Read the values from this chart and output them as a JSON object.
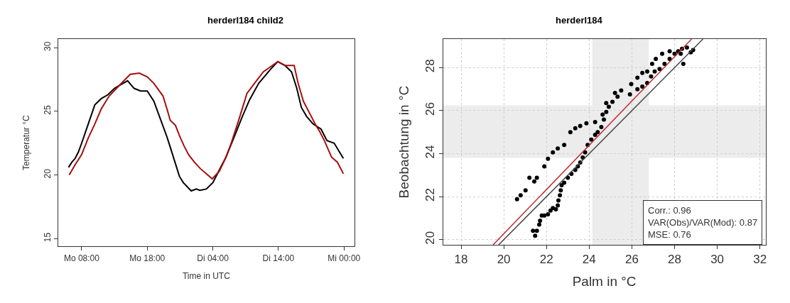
{
  "chart_data": [
    {
      "type": "line",
      "title": "herderl184 child2",
      "xlabel": "Time in UTC",
      "ylabel": "Temperatur °C",
      "xlim": [
        "2000-01-03T04:24",
        "2000-01-05T01:36"
      ],
      "ylim": [
        14.4,
        30.67
      ],
      "xticks": [
        {
          "value": "2000-01-03T08:00",
          "label": "Mo 08:00"
        },
        {
          "value": "2000-01-03T18:00",
          "label": "Mo 18:00"
        },
        {
          "value": "2000-01-04T04:00",
          "label": "Di 04:00"
        },
        {
          "value": "2000-01-04T14:00",
          "label": "Di 14:00"
        },
        {
          "value": "2000-01-05T00:00",
          "label": "Mi 00:00"
        }
      ],
      "yticks": [
        15,
        20,
        25,
        30
      ],
      "grid": false,
      "marker": "none",
      "line_style": "solid",
      "series": [
        {
          "color": "#000000",
          "x": [
            "2000-01-03T06:00",
            "2000-01-03T06:30",
            "2000-01-03T07:00",
            "2000-01-03T07:30",
            "2000-01-03T08:00",
            "2000-01-03T09:00",
            "2000-01-03T10:00",
            "2000-01-03T11:00",
            "2000-01-03T12:00",
            "2000-01-03T13:00",
            "2000-01-03T14:00",
            "2000-01-03T15:00",
            "2000-01-03T16:00",
            "2000-01-03T17:00",
            "2000-01-03T18:00",
            "2000-01-03T19:00",
            "2000-01-03T20:00",
            "2000-01-03T21:00",
            "2000-01-03T21:30",
            "2000-01-03T22:54",
            "2000-01-03T23:30",
            "2000-01-04T00:42",
            "2000-01-04T01:30",
            "2000-01-04T02:00",
            "2000-01-04T03:00",
            "2000-01-04T04:00",
            "2000-01-04T05:18",
            "2000-01-04T06:00",
            "2000-01-04T07:30",
            "2000-01-04T08:30",
            "2000-01-04T09:36",
            "2000-01-04T11:00",
            "2000-01-04T12:48",
            "2000-01-04T13:54",
            "2000-01-04T15:00",
            "2000-01-04T16:00",
            "2000-01-04T16:48",
            "2000-01-04T17:30",
            "2000-01-04T18:18",
            "2000-01-04T19:18",
            "2000-01-04T20:30",
            "2000-01-04T21:24",
            "2000-01-04T22:30",
            "2000-01-04T23:54"
          ],
          "values": [
            20.6,
            21,
            21.3,
            21.8,
            22.5,
            24,
            25.5,
            26,
            26.3,
            26.8,
            27.1,
            27.4,
            26.8,
            26.6,
            26.6,
            25.8,
            24.4,
            23,
            22.2,
            19.9,
            19.4,
            18.75,
            18.9,
            18.8,
            18.9,
            19.4,
            20.7,
            21.4,
            23.3,
            24.6,
            25.9,
            27.2,
            28.3,
            28.9,
            28.6,
            28.1,
            26.8,
            25.3,
            24.6,
            24,
            23.6,
            22.7,
            22.5,
            21.3
          ]
        },
        {
          "color": "#a50f0f",
          "x": [
            "2000-01-03T06:06",
            "2000-01-03T07:00",
            "2000-01-03T08:00",
            "2000-01-03T09:00",
            "2000-01-03T10:00",
            "2000-01-03T11:00",
            "2000-01-03T12:12",
            "2000-01-03T13:30",
            "2000-01-03T15:24",
            "2000-01-03T16:48",
            "2000-01-03T18:00",
            "2000-01-03T19:00",
            "2000-01-03T20:24",
            "2000-01-03T21:00",
            "2000-01-03T21:30",
            "2000-01-03T22:18",
            "2000-01-03T22:54",
            "2000-01-03T23:36",
            "2000-01-04T00:18",
            "2000-01-04T01:12",
            "2000-01-04T02:06",
            "2000-01-04T03:00",
            "2000-01-04T03:54",
            "2000-01-04T05:00",
            "2000-01-04T06:00",
            "2000-01-04T06:48",
            "2000-01-04T08:00",
            "2000-01-04T09:12",
            "2000-01-04T10:30",
            "2000-01-04T11:42",
            "2000-01-04T12:48",
            "2000-01-04T13:54",
            "2000-01-04T15:00",
            "2000-01-04T16:24",
            "2000-01-04T17:00",
            "2000-01-04T17:48",
            "2000-01-04T18:42",
            "2000-01-04T19:36",
            "2000-01-04T20:18",
            "2000-01-04T21:00",
            "2000-01-04T22:06",
            "2000-01-04T23:00",
            "2000-01-04T23:54"
          ],
          "values": [
            20,
            20.8,
            21.6,
            22.9,
            24,
            25.2,
            26.2,
            26.9,
            27.9,
            28,
            27.7,
            27.2,
            26.2,
            25.2,
            24.3,
            23.9,
            23.1,
            22.3,
            21.6,
            21,
            20.5,
            20.1,
            19.7,
            20.3,
            21.4,
            22.5,
            24.4,
            26.4,
            27.3,
            28.1,
            28.5,
            28.9,
            28.6,
            28.6,
            27.2,
            25.8,
            24.9,
            24,
            23.4,
            22.7,
            21.4,
            21,
            20.1
          ]
        }
      ]
    },
    {
      "type": "scatter",
      "title": "herderl184",
      "xlabel": "Palm in °C",
      "ylabel": "Beobachtung in °C",
      "xlim": [
        17.16,
        32.26
      ],
      "ylim": [
        19.76,
        29.33
      ],
      "xticks": [
        18,
        20,
        22,
        24,
        26,
        28,
        30,
        32
      ],
      "yticks": [
        20,
        22,
        24,
        26,
        28
      ],
      "grid": true,
      "bands": [
        {
          "axis": "y",
          "from": 23.8,
          "to": 26.25,
          "color": "#ececec"
        },
        {
          "axis": "x",
          "from": 24.15,
          "to": 26.8,
          "color": "#ececec"
        }
      ],
      "annotations": [
        "Corr.: 0.96\nVAR(Obs)/VAR(Mod): 0.87\nMSE: 0.76"
      ],
      "series": [
        {
          "type": "scatter",
          "marker": "circle",
          "color": "#000000",
          "x": [
            21.37,
            21.47,
            21.55,
            21.66,
            21.7,
            21.78,
            21.9,
            22.07,
            22.19,
            22.3,
            22.44,
            22.53,
            22.56,
            22.63,
            22.67,
            22.71,
            22.83,
            23.0,
            23.17,
            23.35,
            23.47,
            23.58,
            23.7,
            23.81,
            23.93,
            24.1,
            24.28,
            24.4,
            24.57,
            24.69,
            24.8,
            24.92,
            25.09,
            25.33,
            25.5,
            25.91,
            26.26,
            26.49,
            26.72,
            26.9,
            27.07,
            27.3,
            27.53,
            27.77,
            28.0,
            28.17,
            28.29,
            28.35,
            28.41,
            28.58,
            28.76,
            28.87,
            20.62,
            20.79,
            21.02,
            21.2,
            21.43,
            21.55,
            21.9,
            22.07,
            22.3,
            22.53,
            22.83,
            23.12,
            23.35,
            23.58,
            23.87,
            24.28,
            24.63,
            24.8,
            25.21,
            25.97,
            26.26,
            26.49,
            26.72,
            26.95,
            27.12,
            27.42,
            27.77
          ],
          "values": [
            20.41,
            20.18,
            20.41,
            20.7,
            20.88,
            21.12,
            21.12,
            21.18,
            21.35,
            21.47,
            21.41,
            21.59,
            21.82,
            22.06,
            22.29,
            22.53,
            22.65,
            22.88,
            23.06,
            23.24,
            23.41,
            23.59,
            23.82,
            24.06,
            24.41,
            24.65,
            24.88,
            25.0,
            25.24,
            25.59,
            25.94,
            26.18,
            26.41,
            26.65,
            26.94,
            26.76,
            27.0,
            27.12,
            27.29,
            27.59,
            27.82,
            27.94,
            28.18,
            28.41,
            28.65,
            28.76,
            28.65,
            28.88,
            28.18,
            28.94,
            28.71,
            28.82,
            21.88,
            22.06,
            22.29,
            22.88,
            22.71,
            22.88,
            23.41,
            23.76,
            24.06,
            24.24,
            24.41,
            25.0,
            25.18,
            25.29,
            25.41,
            25.47,
            25.82,
            26.35,
            26.82,
            27.24,
            27.53,
            27.76,
            27.82,
            28.18,
            28.41,
            28.65,
            28.76
          ]
        },
        {
          "type": "line",
          "marker": "none",
          "color": "#444444",
          "x": [
            19.76,
            29.33
          ],
          "values": [
            19.76,
            29.33
          ]
        },
        {
          "type": "line",
          "marker": "none",
          "color": "#c0272d",
          "x": [
            19.5,
            28.8
          ],
          "values": [
            19.76,
            29.33
          ]
        }
      ]
    }
  ]
}
